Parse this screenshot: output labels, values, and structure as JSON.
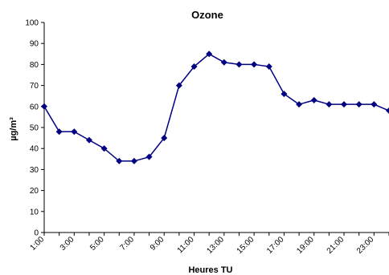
{
  "chart_data": {
    "type": "line",
    "title": "Ozone",
    "xlabel": "Heures TU",
    "ylabel": "µg/m³",
    "ylim": [
      0,
      100
    ],
    "yticks": [
      0,
      10,
      20,
      30,
      40,
      50,
      60,
      70,
      80,
      90,
      100
    ],
    "x": [
      "1:00",
      "2:00",
      "3:00",
      "4:00",
      "5:00",
      "6:00",
      "7:00",
      "8:00",
      "9:00",
      "10:00",
      "11:00",
      "12:00",
      "13:00",
      "14:00",
      "15:00",
      "16:00",
      "17:00",
      "18:00",
      "19:00",
      "20:00",
      "21:00",
      "22:00",
      "23:00",
      "24:00"
    ],
    "xtick_labels": [
      "1:00",
      "3:00",
      "5:00",
      "7:00",
      "9:00",
      "11:00",
      "13:00",
      "15:00",
      "17:00",
      "19:00",
      "21:00",
      "23:00"
    ],
    "series": [
      {
        "color": "#000080",
        "marker": "diamond",
        "values": [
          60,
          48,
          48,
          44,
          40,
          34,
          34,
          36,
          45,
          70,
          79,
          85,
          81,
          80,
          80,
          79,
          66,
          61,
          63,
          61,
          61,
          61,
          61,
          58
        ]
      }
    ],
    "grid": false,
    "legend": "none"
  }
}
